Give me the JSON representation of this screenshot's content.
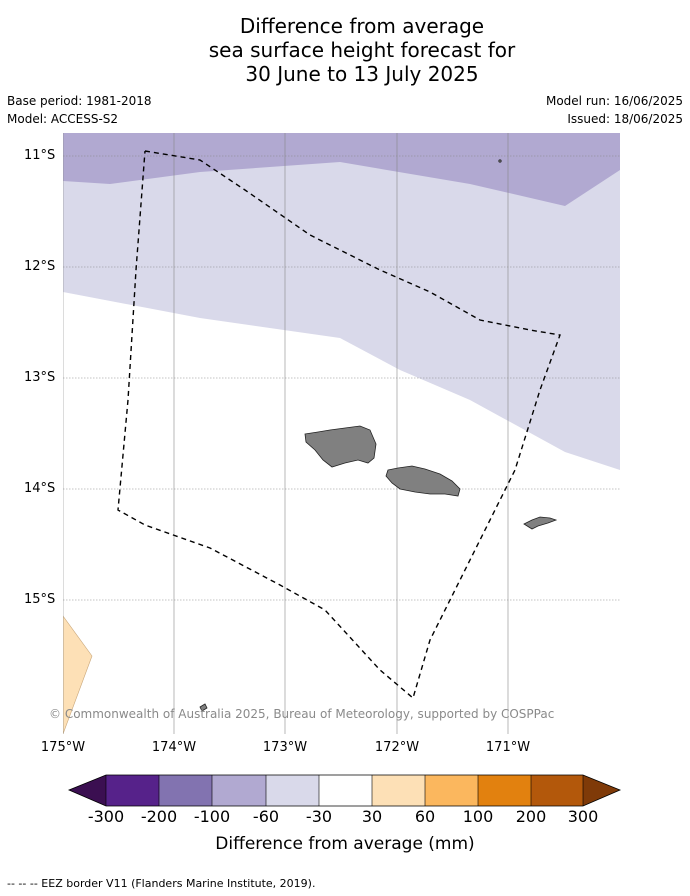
{
  "title": {
    "line1": "Difference from average",
    "line2": "sea surface height forecast for",
    "line3": "30 June to 13 July 2025"
  },
  "meta": {
    "base_period": "Base period: 1981-2018",
    "model": "Model: ACCESS-S2",
    "model_run": "Model run: 16/06/2025",
    "issued": "Issued: 18/06/2025"
  },
  "map": {
    "lat_labels": [
      "11°S",
      "12°S",
      "13°S",
      "14°S",
      "15°S"
    ],
    "lon_labels": [
      "175°W",
      "174°W",
      "173°W",
      "172°W",
      "171°W"
    ],
    "copyright": "© Commonwealth of Australia 2025, Bureau of Meteorology, supported by COSPPac",
    "shown_categories": [
      "-100 to -60",
      "-60 to -30",
      "-30 to 30",
      "30 to 60"
    ]
  },
  "colorbar": {
    "ticks": [
      "-300",
      "-200",
      "-100",
      "-60",
      "-30",
      "30",
      "60",
      "100",
      "200",
      "300"
    ],
    "colors": [
      "#3b0f51",
      "#56228a",
      "#8273b0",
      "#b1a9d1",
      "#d9d9ea",
      "#ffffff",
      "#fde0b6",
      "#fbb75e",
      "#e2810f",
      "#b3580b",
      "#7f3a08"
    ],
    "title": "Difference from average (mm)"
  },
  "footnote": "--  --  -- EEZ border V11 (Flanders Marine Institute, 2019)."
}
